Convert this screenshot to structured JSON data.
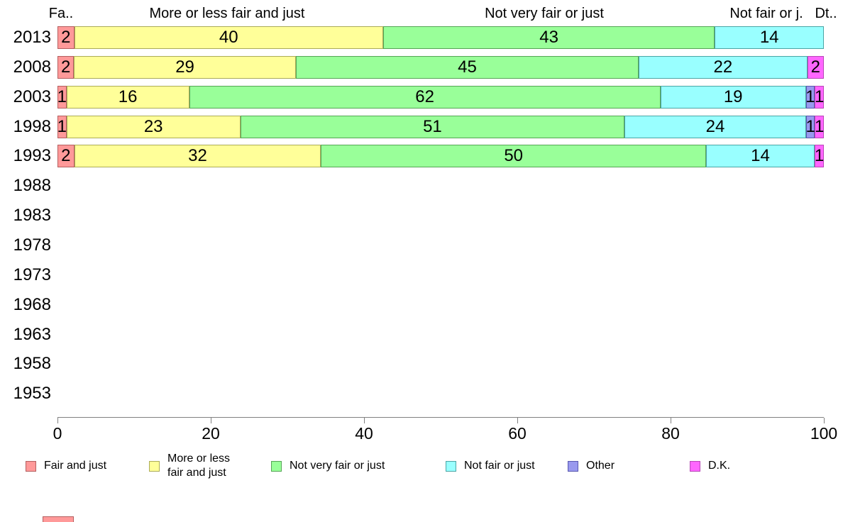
{
  "header": {
    "labels": [
      "Fa..",
      "More or less fair and just",
      "Not very fair or just",
      "Not fair or j.",
      "Dt.."
    ]
  },
  "chart_data": {
    "type": "bar",
    "stacked": true,
    "orientation": "horizontal",
    "title": "",
    "xlabel": "",
    "ylabel": "",
    "xlim": [
      0,
      100
    ],
    "grid": false,
    "legend_position": "bottom",
    "categories": [
      "2013",
      "2008",
      "2003",
      "1998",
      "1993",
      "1988",
      "1983",
      "1978",
      "1973",
      "1968",
      "1963",
      "1958",
      "1953"
    ],
    "series": [
      {
        "name": "Fair and just",
        "color": "#ff9999",
        "border_color": "#b45f5f",
        "values": [
          2,
          2,
          1,
          1,
          2,
          null,
          null,
          null,
          null,
          null,
          null,
          null,
          null
        ]
      },
      {
        "name": "More or less fair and just",
        "color": "#ffff99",
        "border_color": "#acac58",
        "values": [
          40,
          29,
          16,
          23,
          32,
          null,
          null,
          null,
          null,
          null,
          null,
          null,
          null
        ]
      },
      {
        "name": "Not very fair or just",
        "color": "#99ff99",
        "border_color": "#56a556",
        "values": [
          43,
          45,
          62,
          51,
          50,
          null,
          null,
          null,
          null,
          null,
          null,
          null,
          null
        ]
      },
      {
        "name": "Not fair or just",
        "color": "#99ffff",
        "border_color": "#4ba5a5",
        "values": [
          14,
          22,
          19,
          24,
          14,
          null,
          null,
          null,
          null,
          null,
          null,
          null,
          null
        ]
      },
      {
        "name": "Other",
        "color": "#9999ee",
        "border_color": "#5858b0",
        "values": [
          null,
          null,
          1,
          1,
          null,
          null,
          null,
          null,
          null,
          null,
          null,
          null,
          null
        ]
      },
      {
        "name": "D.K.",
        "color": "#ff66ff",
        "border_color": "#b847b8",
        "values": [
          null,
          2,
          1,
          1,
          1,
          null,
          null,
          null,
          null,
          null,
          null,
          null,
          null
        ]
      }
    ],
    "axis_ticks": [
      0,
      20,
      40,
      60,
      80,
      100
    ]
  },
  "legend": {
    "items": [
      {
        "label": "Fair and just",
        "color": "#ff9999",
        "border_color": "#b45f5f"
      },
      {
        "label": "More or less\nfair and just",
        "color": "#ffff99",
        "border_color": "#acac58"
      },
      {
        "label": "Not very fair or just",
        "color": "#99ff99",
        "border_color": "#56a556"
      },
      {
        "label": "Not fair or just",
        "color": "#99ffff",
        "border_color": "#4ba5a5"
      },
      {
        "label": "Other",
        "color": "#9999ee",
        "border_color": "#5858b0"
      },
      {
        "label": "D.K.",
        "color": "#ff66ff",
        "border_color": "#b847b8"
      }
    ]
  },
  "partial_bar": {
    "color": "#ff9999",
    "border_color": "#b45f5f"
  }
}
